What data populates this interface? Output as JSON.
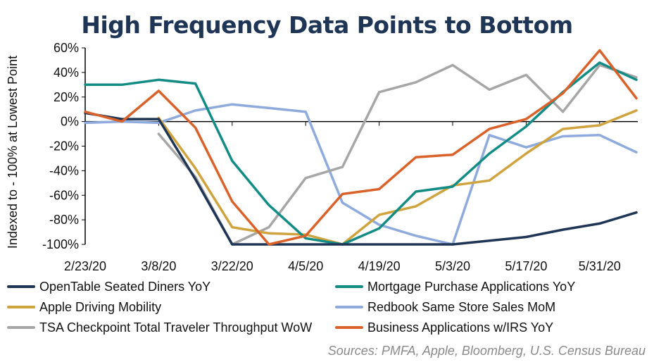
{
  "title": "High Frequency Data Points to Bottom",
  "source": "Sources: PMFA, Apple, Bloomberg, U.S. Census Bureau",
  "chart_data": {
    "type": "line",
    "title": "High Frequency Data Points to Bottom",
    "ylabel": "Indexed to - 100% at Lowest Point",
    "xlabel": "",
    "ylim": [
      -100,
      60
    ],
    "yticks": [
      -100,
      -80,
      -60,
      -40,
      -20,
      0,
      20,
      40,
      60
    ],
    "ytick_labels": [
      "-100%",
      "-80%",
      "-60%",
      "-40%",
      "-20%",
      "0%",
      "20%",
      "40%",
      "60%"
    ],
    "xtick_labels": [
      "2/23/20",
      "3/8/20",
      "3/22/20",
      "4/5/20",
      "4/19/20",
      "5/3/20",
      "5/17/20",
      "5/31/20"
    ],
    "x_weeks": [
      "2/23/20",
      "3/1/20",
      "3/8/20",
      "3/15/20",
      "3/22/20",
      "3/29/20",
      "4/5/20",
      "4/12/20",
      "4/19/20",
      "4/26/20",
      "5/3/20",
      "5/10/20",
      "5/17/20",
      "5/24/20",
      "5/31/20",
      "6/7/20"
    ],
    "grid": false,
    "legend_position": "bottom",
    "series": [
      {
        "name": "OpenTable Seated Diners YoY",
        "color": "#1f3556",
        "values": [
          7,
          2,
          2,
          -47,
          -100,
          -100,
          -100,
          -100,
          -100,
          -100,
          -100,
          -97,
          -94,
          -88,
          -83,
          -74
        ]
      },
      {
        "name": "Mortgage Purchase Applications YoY",
        "color": "#128c85",
        "values": [
          30,
          30,
          34,
          31,
          -32,
          -68,
          -95,
          -100,
          -87,
          -57,
          -53,
          -26,
          -4,
          24,
          48,
          34
        ]
      },
      {
        "name": "Apple Driving Mobility",
        "color": "#cfa33d",
        "values": [
          null,
          null,
          3,
          -38,
          -86,
          -91,
          -92,
          -100,
          -76,
          -69,
          -52,
          -48,
          -26,
          -6,
          -3,
          9
        ]
      },
      {
        "name": "Redbook Same Store Sales MoM",
        "color": "#8faadc",
        "values": [
          -1,
          0,
          -1,
          9,
          14,
          11,
          8,
          -66,
          -84,
          -93,
          -100,
          -11,
          -21,
          -12,
          -11,
          -25
        ]
      },
      {
        "name": "TSA Checkpoint Total Traveler Throughput WoW",
        "color": "#a6a6a6",
        "values": [
          null,
          null,
          -10,
          -45,
          -100,
          -86,
          -46,
          -37,
          24,
          32,
          46,
          26,
          38,
          8,
          46,
          36
        ]
      },
      {
        "name": "Business Applications w/IRS YoY",
        "color": "#d9622b",
        "values": [
          8,
          0,
          25,
          -5,
          -65,
          -100,
          -93,
          -59,
          -55,
          -29,
          -27,
          -6,
          2,
          23,
          58,
          19
        ]
      }
    ]
  }
}
